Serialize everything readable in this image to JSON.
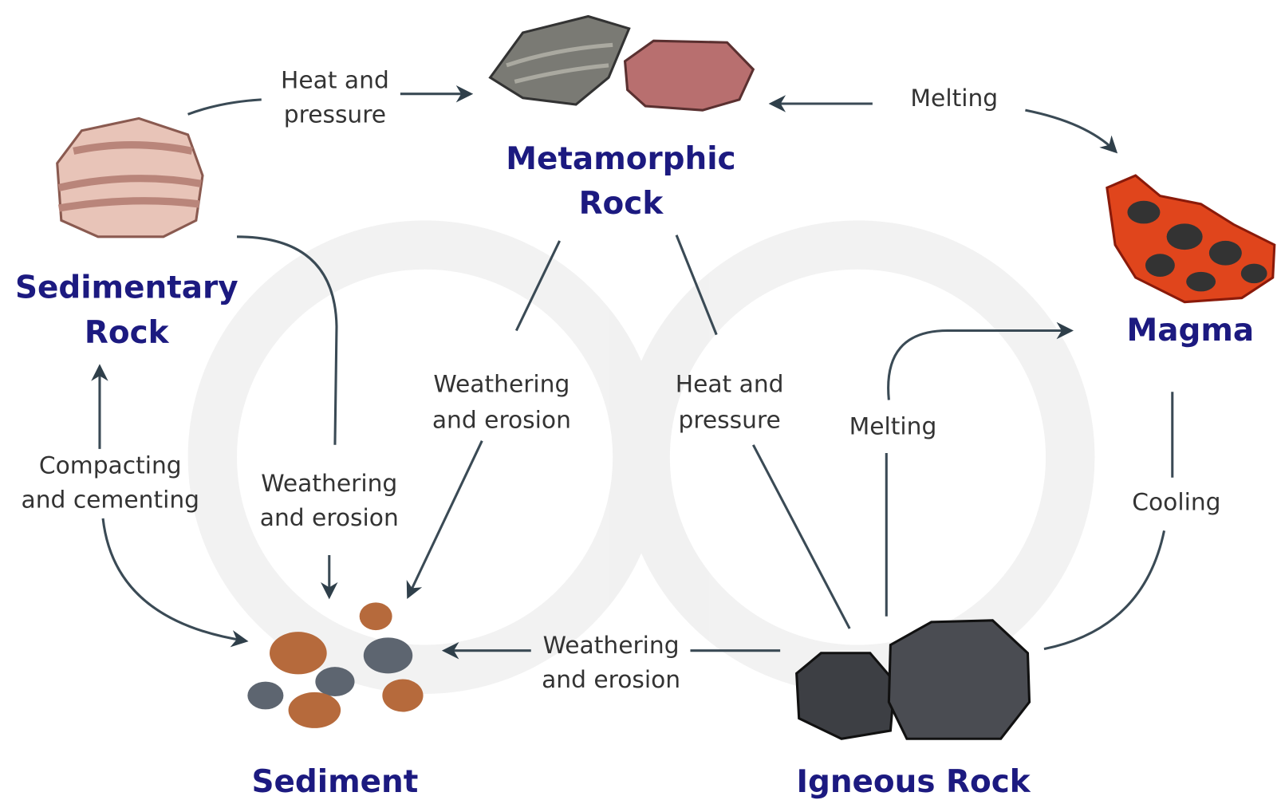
{
  "nodes": [
    {
      "label": [
        "Sedimentary",
        "Rock"
      ]
    },
    {
      "label": [
        "Metamorphic",
        "Rock"
      ]
    },
    {
      "label": [
        "Magma"
      ]
    },
    {
      "label": [
        "Igneous Rock"
      ]
    },
    {
      "label": [
        "Sediment"
      ]
    }
  ],
  "edges": [
    {
      "label": [
        "Heat and",
        "pressure"
      ]
    },
    {
      "label": [
        "Melting"
      ]
    },
    {
      "label": [
        "Weathering",
        "and erosion"
      ]
    },
    {
      "label": [
        "Heat and",
        "pressure"
      ]
    },
    {
      "label": [
        "Melting"
      ]
    },
    {
      "label": [
        "Cooling"
      ]
    },
    {
      "label": [
        "Weathering",
        "and erosion"
      ]
    },
    {
      "label": [
        "Weathering",
        "and erosion"
      ]
    },
    {
      "label": [
        "Compacting",
        "and cementing"
      ]
    }
  ]
}
